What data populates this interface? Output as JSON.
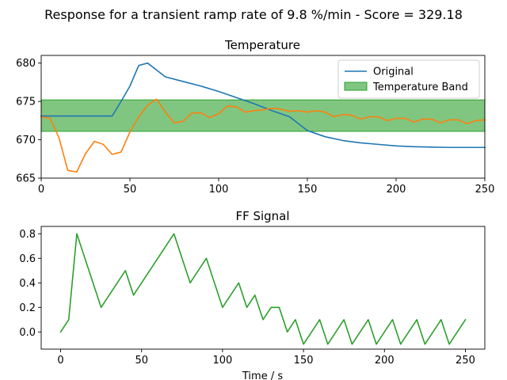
{
  "figure": {
    "suptitle": "Response for a transient ramp rate of 9.8 %/min - Score = 329.18"
  },
  "chart_data": [
    {
      "type": "line",
      "title": "Temperature",
      "xlim": [
        0,
        250
      ],
      "ylim": [
        665,
        681
      ],
      "xticks": [
        0,
        50,
        100,
        150,
        200,
        250
      ],
      "yticks": [
        665,
        670,
        675,
        680
      ],
      "legend_position": "top-right",
      "band": {
        "name": "Temperature Band",
        "y_low": 671.1,
        "y_high": 675.2,
        "color": "#2ca02c"
      },
      "series": [
        {
          "name": "Original",
          "color": "#1f77b4",
          "x": [
            0,
            40,
            45,
            50,
            55,
            60,
            70,
            80,
            90,
            100,
            110,
            120,
            130,
            140,
            150,
            160,
            170,
            180,
            190,
            200,
            210,
            220,
            230,
            240,
            250
          ],
          "y": [
            673.1,
            673.1,
            675.0,
            677.0,
            679.7,
            680.0,
            678.2,
            677.6,
            677.0,
            676.3,
            675.5,
            674.7,
            673.8,
            673.0,
            671.2,
            670.4,
            669.9,
            669.6,
            669.4,
            669.2,
            669.1,
            669.05,
            669.0,
            669.0,
            669.0
          ]
        },
        {
          "name": "",
          "color": "#ff7f0e",
          "x": [
            0,
            5,
            10,
            15,
            20,
            25,
            30,
            35,
            40,
            45,
            50,
            55,
            60,
            65,
            70,
            75,
            80,
            85,
            90,
            95,
            100,
            105,
            110,
            115,
            120,
            125,
            130,
            135,
            140,
            145,
            150,
            155,
            160,
            165,
            170,
            175,
            180,
            185,
            190,
            195,
            200,
            205,
            210,
            215,
            220,
            225,
            230,
            235,
            240,
            245,
            250
          ],
          "y": [
            673.0,
            672.8,
            670.3,
            666.0,
            665.8,
            668.2,
            669.8,
            669.4,
            668.1,
            668.4,
            671.0,
            673.0,
            674.5,
            675.3,
            673.6,
            672.2,
            672.4,
            673.5,
            673.5,
            672.9,
            673.4,
            674.4,
            674.3,
            673.6,
            673.8,
            673.9,
            674.1,
            674.0,
            673.7,
            673.8,
            673.6,
            673.8,
            673.6,
            673.0,
            673.3,
            673.2,
            672.7,
            673.0,
            673.0,
            672.5,
            672.8,
            672.8,
            672.3,
            672.7,
            672.7,
            672.2,
            672.6,
            672.6,
            672.1,
            672.5,
            672.6
          ]
        }
      ]
    },
    {
      "type": "line",
      "title": "FF Signal",
      "xlabel": "Time / s",
      "xlim": [
        -12,
        262
      ],
      "ylim": [
        -0.14,
        0.86
      ],
      "xticks": [
        0,
        50,
        100,
        150,
        200,
        250
      ],
      "yticks": [
        0.0,
        0.2,
        0.4,
        0.6,
        0.8
      ],
      "series": [
        {
          "name": "",
          "color": "#2ca02c",
          "x": [
            0,
            5,
            10,
            25,
            40,
            45,
            70,
            80,
            90,
            100,
            110,
            115,
            120,
            125,
            130,
            135,
            140,
            145,
            150,
            160,
            165,
            175,
            180,
            190,
            195,
            205,
            210,
            220,
            225,
            235,
            240,
            250
          ],
          "y": [
            0.0,
            0.1,
            0.8,
            0.2,
            0.5,
            0.3,
            0.8,
            0.4,
            0.6,
            0.2,
            0.4,
            0.2,
            0.3,
            0.1,
            0.2,
            0.2,
            0.0,
            0.1,
            -0.1,
            0.1,
            -0.1,
            0.1,
            -0.1,
            0.1,
            -0.1,
            0.1,
            -0.1,
            0.1,
            -0.1,
            0.1,
            -0.1,
            0.1
          ]
        }
      ]
    }
  ]
}
